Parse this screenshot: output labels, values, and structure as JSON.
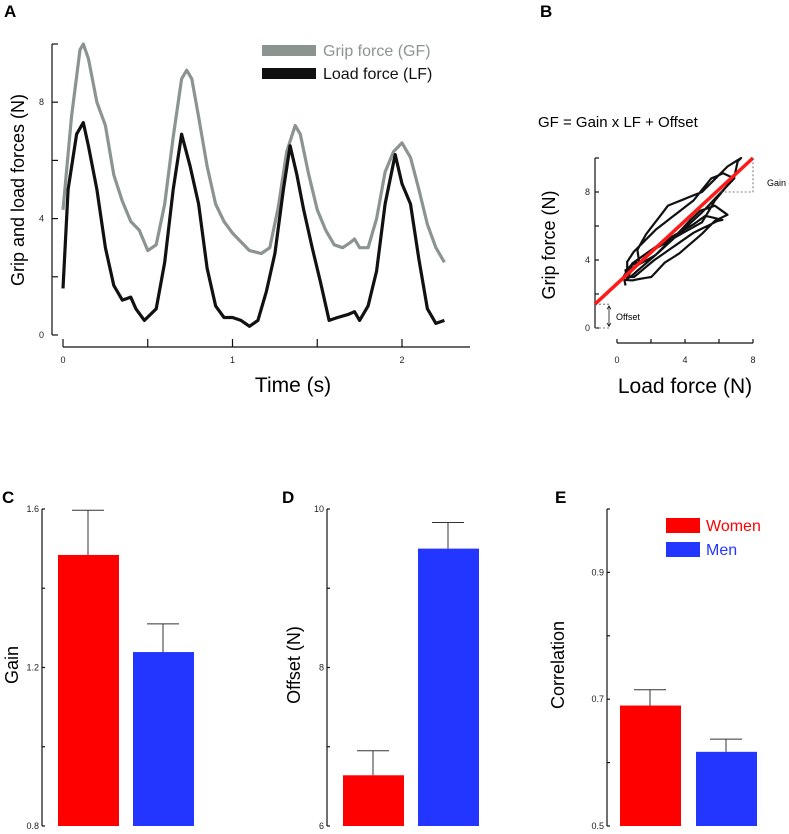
{
  "colors": {
    "grip": "#8c9490",
    "load": "#111111",
    "fit": "#ff1a1a",
    "women": "#ff0000",
    "men": "#2236ff"
  },
  "panels": {
    "A": "A",
    "B": "B",
    "C": "C",
    "D": "D",
    "E": "E"
  },
  "chart_data": [
    {
      "id": "A",
      "type": "line",
      "xlabel": "Time (s)",
      "ylabel": "Grip and load forces (N)",
      "xlim": [
        0,
        2.3
      ],
      "ylim": [
        0,
        10
      ],
      "xticks": [
        0,
        0.5,
        1,
        1.5,
        2
      ],
      "xticklabels": [
        "0",
        "",
        "1",
        "",
        "2"
      ],
      "yticks": [
        0,
        2,
        4,
        6,
        8,
        10
      ],
      "yticklabels": [
        "0",
        "",
        "4",
        "",
        "8",
        ""
      ],
      "legend": "top-right",
      "series": [
        {
          "name": "Grip force (GF)",
          "x": [
            0,
            0.05,
            0.1,
            0.12,
            0.15,
            0.2,
            0.25,
            0.3,
            0.35,
            0.4,
            0.45,
            0.5,
            0.55,
            0.6,
            0.65,
            0.7,
            0.73,
            0.76,
            0.8,
            0.85,
            0.9,
            0.95,
            1.0,
            1.05,
            1.1,
            1.17,
            1.22,
            1.27,
            1.32,
            1.37,
            1.4,
            1.45,
            1.5,
            1.55,
            1.6,
            1.65,
            1.7,
            1.72,
            1.75,
            1.8,
            1.85,
            1.9,
            1.95,
            2.0,
            2.05,
            2.1,
            2.15,
            2.2,
            2.25
          ],
          "y": [
            4.3,
            7.5,
            9.8,
            10,
            9.5,
            8,
            7.2,
            5.5,
            4.6,
            3.9,
            3.6,
            2.9,
            3.1,
            4.5,
            6.8,
            8.8,
            9.1,
            8.8,
            7.5,
            5.8,
            4.5,
            3.9,
            3.5,
            3.2,
            2.9,
            2.8,
            3.0,
            4.4,
            6.3,
            7.2,
            6.9,
            5.5,
            4.3,
            3.6,
            3.1,
            3.0,
            3.2,
            3.3,
            3.0,
            3.0,
            4.0,
            5.6,
            6.3,
            6.6,
            6.1,
            5.0,
            3.8,
            3.0,
            2.5
          ]
        },
        {
          "name": "Load force (LF)",
          "x": [
            0,
            0.03,
            0.08,
            0.12,
            0.15,
            0.2,
            0.25,
            0.3,
            0.35,
            0.4,
            0.43,
            0.48,
            0.55,
            0.6,
            0.65,
            0.7,
            0.75,
            0.8,
            0.85,
            0.9,
            0.95,
            1.0,
            1.05,
            1.1,
            1.15,
            1.2,
            1.25,
            1.3,
            1.34,
            1.38,
            1.42,
            1.47,
            1.52,
            1.57,
            1.62,
            1.68,
            1.72,
            1.75,
            1.8,
            1.85,
            1.9,
            1.96,
            2.0,
            2.05,
            2.1,
            2.15,
            2.2,
            2.25
          ],
          "y": [
            1.6,
            5.0,
            6.9,
            7.3,
            6.5,
            5.0,
            3.0,
            1.7,
            1.2,
            1.3,
            0.9,
            0.5,
            0.9,
            2.5,
            5.0,
            6.9,
            5.8,
            4.5,
            2.3,
            1.0,
            0.6,
            0.6,
            0.5,
            0.3,
            0.5,
            1.5,
            2.8,
            5.0,
            6.5,
            5.5,
            4.3,
            3.0,
            1.8,
            0.5,
            0.6,
            0.7,
            0.8,
            0.5,
            1.0,
            2.2,
            4.5,
            6.2,
            5.2,
            4.5,
            2.6,
            0.9,
            0.4,
            0.5
          ]
        }
      ]
    },
    {
      "id": "B",
      "type": "scatter",
      "title": "GF = Gain x LF + Offset",
      "xlabel": "Load force (N)",
      "ylabel": "Grip force (N)",
      "xlim": [
        -1.3,
        8
      ],
      "ylim": [
        0,
        10
      ],
      "xticks": [
        0,
        2,
        4,
        6,
        8
      ],
      "xticklabels": [
        "0",
        "",
        "4",
        "",
        "8"
      ],
      "yticks": [
        0,
        2,
        4,
        6,
        8,
        10
      ],
      "yticklabels": [
        "0",
        "",
        "4",
        "",
        "8",
        ""
      ],
      "fit": {
        "from": [
          -1.3,
          1.4
        ],
        "to": [
          8,
          10
        ]
      },
      "annotations": [
        "Gain",
        "Offset"
      ],
      "points_source": "GF vs LF from panel A"
    },
    {
      "id": "C",
      "type": "bar",
      "ylabel": "Gain",
      "ylim": [
        0.8,
        1.6
      ],
      "yticks": [
        0.8,
        1.0,
        1.2,
        1.4,
        1.6
      ],
      "yticklabels": [
        "0.8",
        "",
        "1.2",
        "",
        "1.6"
      ],
      "categories": [
        "Women",
        "Men"
      ],
      "values": [
        1.484,
        1.239
      ],
      "errors": [
        0.113,
        0.071
      ]
    },
    {
      "id": "D",
      "type": "bar",
      "ylabel": "Offset (N)",
      "ylim": [
        6,
        10
      ],
      "yticks": [
        6,
        7,
        8,
        9,
        10
      ],
      "yticklabels": [
        "6",
        "",
        "8",
        "",
        "10"
      ],
      "categories": [
        "Women",
        "Men"
      ],
      "values": [
        6.64,
        9.5
      ],
      "errors": [
        0.31,
        0.33
      ]
    },
    {
      "id": "E",
      "type": "bar",
      "ylabel": "Correlation",
      "ylim": [
        0.5,
        1.0
      ],
      "yticks": [
        0.5,
        0.6,
        0.7,
        0.8,
        0.9,
        1.0
      ],
      "yticklabels": [
        "0.5",
        "",
        "0.7",
        "",
        "0.9",
        ""
      ],
      "categories": [
        "Women",
        "Men"
      ],
      "values": [
        0.69,
        0.617
      ],
      "errors": [
        0.025,
        0.02
      ],
      "legend": "top-right"
    }
  ]
}
